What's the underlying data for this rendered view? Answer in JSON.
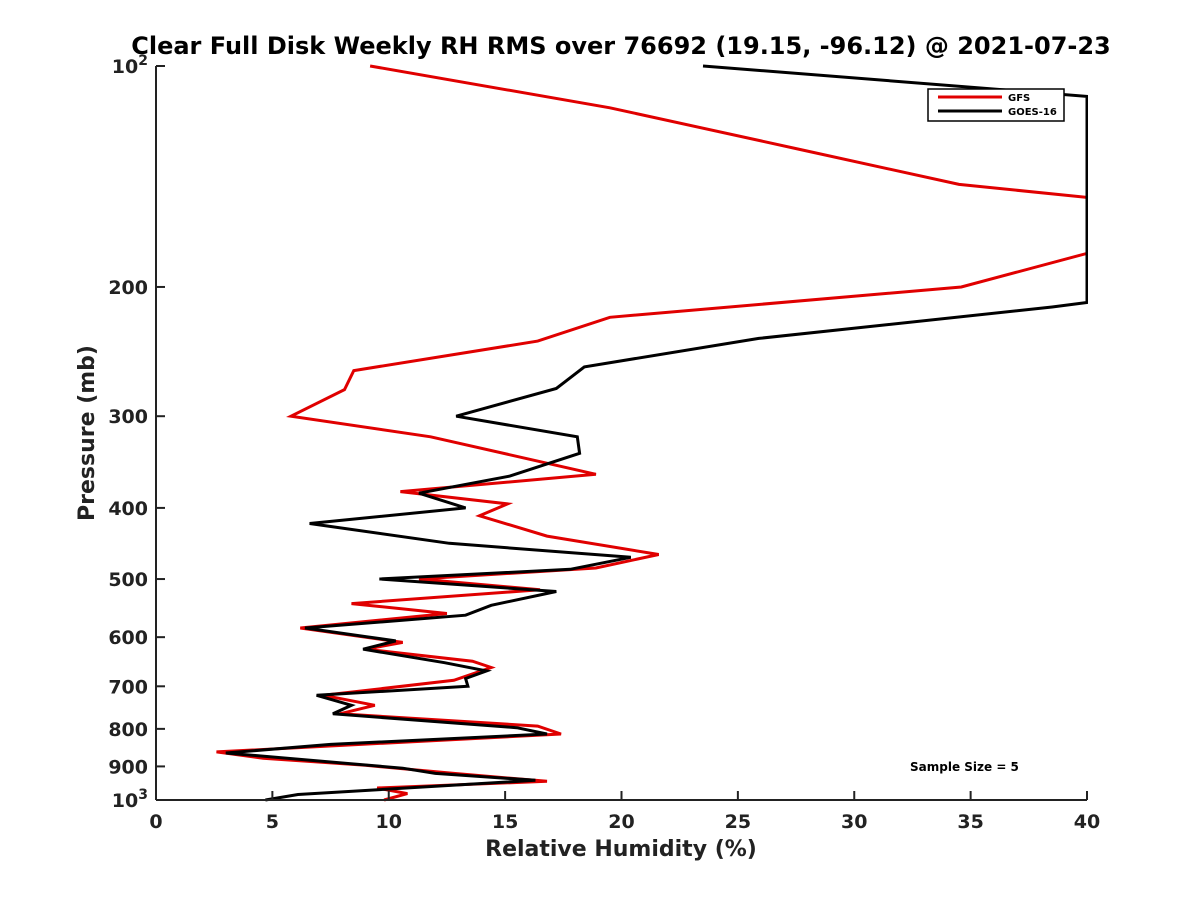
{
  "chart_data": {
    "type": "line",
    "title": "Clear Full Disk Weekly RH RMS over 76692 (19.15, -96.12) @ 2021-07-23",
    "xlabel": "Relative Humidity (%)",
    "ylabel": "Pressure (mb)",
    "xlim": [
      0,
      40
    ],
    "ylim": [
      100,
      1000
    ],
    "yscale": "log",
    "y_reversed": true,
    "x_ticks": [
      0,
      5,
      10,
      15,
      20,
      25,
      30,
      35,
      40
    ],
    "y_ticks": [
      {
        "value": 100,
        "label": "10",
        "exp": "2"
      },
      {
        "value": 200,
        "label": "200"
      },
      {
        "value": 300,
        "label": "300"
      },
      {
        "value": 400,
        "label": "400"
      },
      {
        "value": 500,
        "label": "500"
      },
      {
        "value": 600,
        "label": "600"
      },
      {
        "value": 700,
        "label": "700"
      },
      {
        "value": 800,
        "label": "800"
      },
      {
        "value": 900,
        "label": "900"
      },
      {
        "value": 1000,
        "label": "10",
        "exp": "3"
      }
    ],
    "legend_position": "top-right",
    "annotation": "Sample Size = 5",
    "series": [
      {
        "name": "GFS",
        "color": "#e00000",
        "points": [
          [
            9.2,
            100
          ],
          [
            19.5,
            114
          ],
          [
            27.7,
            130
          ],
          [
            34.5,
            145
          ],
          [
            40.0,
            151
          ],
          [
            40.0,
            180
          ],
          [
            34.6,
            200
          ],
          [
            19.5,
            220
          ],
          [
            16.4,
            237
          ],
          [
            8.5,
            260
          ],
          [
            8.1,
            276
          ],
          [
            5.8,
            300
          ],
          [
            11.8,
            320
          ],
          [
            18.9,
            360
          ],
          [
            10.5,
            380
          ],
          [
            15.1,
            395
          ],
          [
            13.9,
            410
          ],
          [
            16.8,
            437
          ],
          [
            21.6,
            463
          ],
          [
            18.9,
            483
          ],
          [
            11.3,
            500
          ],
          [
            16.5,
            517
          ],
          [
            8.4,
            540
          ],
          [
            12.5,
            557
          ],
          [
            6.2,
            583
          ],
          [
            10.6,
            610
          ],
          [
            9.0,
            623
          ],
          [
            13.6,
            647
          ],
          [
            14.4,
            660
          ],
          [
            12.8,
            687
          ],
          [
            7.2,
            720
          ],
          [
            9.4,
            743
          ],
          [
            7.9,
            763
          ],
          [
            16.4,
            793
          ],
          [
            17.4,
            813
          ],
          [
            2.6,
            860
          ],
          [
            4.6,
            877
          ],
          [
            9.0,
            897
          ],
          [
            12.8,
            920
          ],
          [
            16.8,
            943
          ],
          [
            9.5,
            963
          ],
          [
            10.8,
            980
          ],
          [
            9.8,
            1000
          ]
        ]
      },
      {
        "name": "GOES-16",
        "color": "#000000",
        "points": [
          [
            23.5,
            100
          ],
          [
            40.0,
            110
          ],
          [
            40.0,
            210
          ],
          [
            38.5,
            213
          ],
          [
            25.9,
            235
          ],
          [
            18.4,
            257
          ],
          [
            17.2,
            275
          ],
          [
            12.9,
            300
          ],
          [
            18.1,
            320
          ],
          [
            18.2,
            337
          ],
          [
            15.2,
            362
          ],
          [
            11.3,
            382
          ],
          [
            13.3,
            400
          ],
          [
            6.6,
            420
          ],
          [
            12.6,
            447
          ],
          [
            20.4,
            467
          ],
          [
            17.8,
            485
          ],
          [
            9.6,
            500
          ],
          [
            17.2,
            520
          ],
          [
            14.4,
            543
          ],
          [
            13.3,
            560
          ],
          [
            6.4,
            583
          ],
          [
            10.3,
            607
          ],
          [
            8.9,
            623
          ],
          [
            12.4,
            650
          ],
          [
            14.2,
            667
          ],
          [
            13.3,
            683
          ],
          [
            13.4,
            700
          ],
          [
            6.9,
            720
          ],
          [
            8.4,
            743
          ],
          [
            7.6,
            763
          ],
          [
            15.5,
            797
          ],
          [
            16.8,
            813
          ],
          [
            7.5,
            840
          ],
          [
            3.0,
            863
          ],
          [
            10.6,
            905
          ],
          [
            12.0,
            920
          ],
          [
            16.3,
            940
          ],
          [
            6.1,
            983
          ],
          [
            4.7,
            1000
          ]
        ]
      }
    ]
  }
}
